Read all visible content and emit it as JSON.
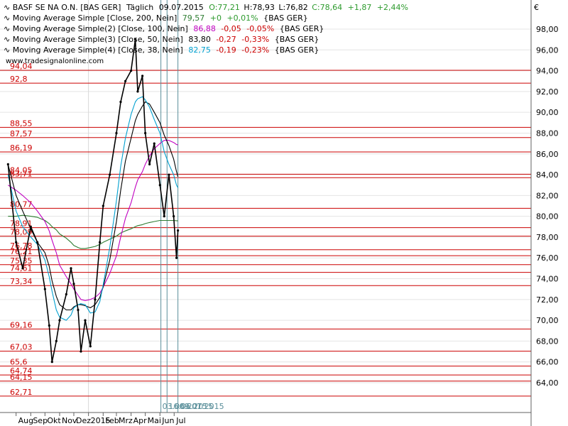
{
  "header": {
    "symbol": "BASF SE NA O.N. [BAS GER]",
    "interval": "Täglich",
    "date": "09.07.2015",
    "open": "O:77,21",
    "high": "H:78,93",
    "low": "L:76,82",
    "close": "C:78,64",
    "change": "+1,87",
    "change_pct": "+2,44%"
  },
  "indicators": [
    {
      "label": "Moving Average Simple [Close, 200, Nein]",
      "value": "79,57",
      "change": "+0",
      "pct": "+0,01%",
      "suffix": "{BAS GER}",
      "color": "#2e7d32",
      "change_color": "#2e9b2e"
    },
    {
      "label": "Moving Average Simple(2) [Close, 100, Nein]",
      "value": "86,88",
      "change": "-0,05",
      "pct": "-0,05%",
      "suffix": "{BAS GER}",
      "color": "#c000c0",
      "change_color": "#cc0000"
    },
    {
      "label": "Moving Average Simple(3) [Close, 50, Nein]",
      "value": "83,80",
      "change": "-0,27",
      "pct": "-0,33%",
      "suffix": "{BAS GER}",
      "color": "#000000",
      "change_color": "#cc0000"
    },
    {
      "label": "Moving Average Simple(4) [Close, 38, Nein]",
      "value": "82,75",
      "change": "-0,19",
      "pct": "-0,23%",
      "suffix": "{BAS GER}",
      "color": "#00a0d0",
      "change_color": "#cc0000"
    }
  ],
  "watermark": "www.tradesignalonline.com",
  "currency": "€",
  "date_markers": [
    "03.06.2015",
    "16.06.2015",
    "09.07.2015"
  ],
  "chart_data": {
    "type": "line",
    "y_axis_side": "right",
    "ylim": [
      62,
      100
    ],
    "yticks": [
      64,
      66,
      68,
      70,
      72,
      74,
      76,
      78,
      80,
      82,
      84,
      86,
      88,
      90,
      92,
      94,
      96,
      98
    ],
    "xtick_labels": [
      "Aug",
      "Sep",
      "Okt",
      "Nov",
      "Dez",
      "2015",
      "Feb",
      "Mrz",
      "Apr",
      "Mai",
      "Jun",
      "Jul"
    ],
    "horizontal_levels": [
      94.04,
      92.8,
      88.55,
      87.57,
      86.19,
      84.05,
      83.71,
      80.77,
      78.91,
      78.09,
      76.78,
      76.21,
      75.35,
      74.61,
      73.34,
      69.16,
      67.03,
      65.6,
      64.74,
      64.15,
      62.71
    ],
    "level_labels": [
      "94,04",
      "92,8",
      "88,55",
      "87,57",
      "86,19",
      "84,05",
      "83,71",
      "80,77",
      "78,91",
      "78,09",
      "76,78",
      "76,21",
      "75,35",
      "74,61",
      "73,34",
      "69,16",
      "67,03",
      "65,6",
      "64,74",
      "64,15",
      "62,71"
    ],
    "price_series_note": "daily candlesticks, closes approximated",
    "x": [
      "2014-07-15",
      "2014-08-01",
      "2014-08-15",
      "2014-09-01",
      "2014-09-15",
      "2014-10-01",
      "2014-10-10",
      "2014-10-16",
      "2014-10-25",
      "2014-11-01",
      "2014-11-15",
      "2014-11-25",
      "2014-12-01",
      "2014-12-10",
      "2014-12-16",
      "2014-12-25",
      "2015-01-05",
      "2015-01-15",
      "2015-01-25",
      "2015-02-01",
      "2015-02-15",
      "2015-03-01",
      "2015-03-10",
      "2015-03-20",
      "2015-04-01",
      "2015-04-10",
      "2015-04-15",
      "2015-04-25",
      "2015-05-01",
      "2015-05-10",
      "2015-05-20",
      "2015-06-01",
      "2015-06-10",
      "2015-06-20",
      "2015-06-30",
      "2015-07-06",
      "2015-07-09"
    ],
    "series": [
      {
        "name": "BASF SE NA O.N.",
        "color": "#000000",
        "values": [
          85.0,
          77.5,
          75.0,
          79.0,
          77.5,
          73.0,
          69.5,
          66.0,
          68.0,
          70.0,
          72.5,
          75.0,
          73.5,
          71.0,
          67.0,
          70.0,
          67.5,
          72.0,
          77.5,
          81.0,
          84.0,
          88.0,
          91.0,
          93.0,
          94.0,
          97.0,
          92.0,
          93.5,
          88.0,
          85.0,
          87.0,
          83.0,
          80.0,
          84.0,
          80.0,
          76.0,
          78.64
        ]
      },
      {
        "name": "Moving Average Simple [Close, 200, Nein]",
        "color": "#2e7d32",
        "values": [
          80.0,
          80.0,
          80.1,
          80.0,
          79.9,
          79.6,
          79.3,
          79.0,
          78.7,
          78.3,
          77.9,
          77.5,
          77.2,
          77.0,
          76.9,
          76.9,
          77.0,
          77.1,
          77.3,
          77.5,
          77.8,
          78.1,
          78.4,
          78.6,
          78.8,
          79.0,
          79.1,
          79.2,
          79.3,
          79.4,
          79.5,
          79.6,
          79.6,
          79.6,
          79.6,
          79.57,
          79.57
        ]
      },
      {
        "name": "Moving Average Simple(2) [Close, 100, Nein]",
        "color": "#c000c0",
        "values": [
          83.0,
          82.5,
          82.0,
          81.3,
          80.5,
          79.5,
          78.6,
          77.7,
          76.5,
          75.3,
          74.2,
          73.5,
          73.0,
          72.4,
          72.0,
          71.9,
          72.0,
          72.2,
          72.6,
          73.2,
          74.5,
          76.2,
          78.0,
          79.8,
          81.3,
          82.8,
          83.5,
          84.3,
          85.0,
          85.8,
          86.5,
          87.0,
          87.3,
          87.3,
          87.1,
          86.9,
          86.88
        ]
      },
      {
        "name": "Moving Average Simple(3) [Close, 50, Nein]",
        "color": "#000000",
        "values": [
          85.0,
          82.0,
          80.5,
          78.8,
          77.5,
          76.5,
          75.2,
          73.8,
          72.3,
          71.5,
          71.0,
          71.0,
          71.3,
          71.5,
          71.5,
          71.4,
          71.2,
          71.5,
          72.2,
          73.2,
          75.8,
          79.5,
          82.5,
          85.3,
          87.5,
          89.2,
          89.8,
          90.6,
          91.0,
          90.8,
          90.0,
          89.0,
          87.8,
          86.8,
          85.5,
          84.3,
          83.8
        ]
      },
      {
        "name": "Moving Average Simple(4) [Close, 38, Nein]",
        "color": "#00a0d0",
        "values": [
          84.0,
          80.5,
          79.0,
          78.0,
          77.3,
          75.8,
          74.2,
          72.8,
          71.0,
          70.3,
          70.0,
          70.5,
          71.2,
          71.5,
          71.6,
          71.5,
          70.7,
          70.8,
          71.8,
          73.4,
          77.0,
          81.5,
          84.8,
          87.5,
          89.8,
          91.0,
          91.3,
          91.5,
          91.2,
          90.5,
          89.3,
          88.0,
          86.2,
          85.0,
          84.0,
          83.0,
          82.75
        ]
      }
    ]
  }
}
